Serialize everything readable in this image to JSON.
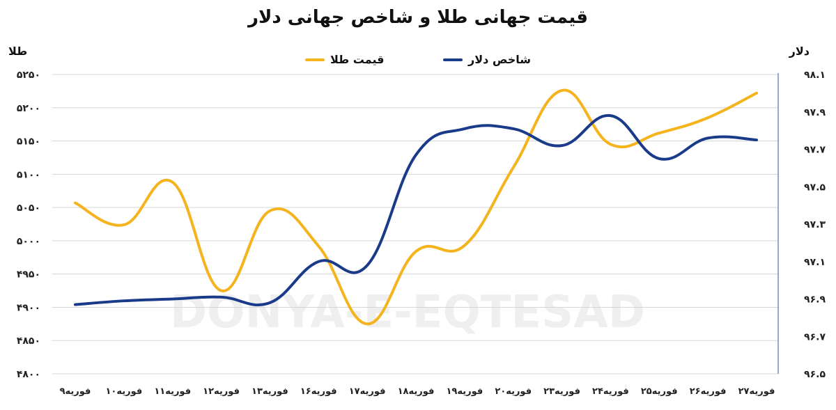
{
  "chart_data": {
    "type": "line",
    "title": "قیمت جهانی طلا و شاخص جهانی دلار",
    "ylabel_left": "طلا",
    "ylabel_right": "دلار",
    "watermark": "DONYA-E-EQTESAD",
    "categories": [
      "۹فوریه",
      "۱۰فوریه",
      "۱۱فوریه",
      "۱۲فوریه",
      "۱۳فوریه",
      "۱۶فوریه",
      "۱۷فوریه",
      "۱۸فوریه",
      "۱۹فوریه",
      "۲۰فوریه",
      "۲۳فوریه",
      "۲۴فوریه",
      "۲۵فوریه",
      "۲۶فوریه",
      "۲۷فوریه"
    ],
    "left_axis": {
      "ylim": [
        4800,
        5250
      ],
      "ticks": [
        4800,
        4850,
        4900,
        4950,
        5000,
        5050,
        5100,
        5150,
        5200,
        5250
      ],
      "tick_labels": [
        "۴۸۰۰",
        "۴۸۵۰",
        "۴۹۰۰",
        "۴۹۵۰",
        "۵۰۰۰",
        "۵۰۵۰",
        "۵۱۰۰",
        "۵۱۵۰",
        "۵۲۰۰",
        "۵۲۵۰"
      ]
    },
    "right_axis": {
      "ylim": [
        96.5,
        98.1
      ],
      "ticks": [
        96.5,
        96.7,
        96.9,
        97.1,
        97.3,
        97.5,
        97.7,
        97.9,
        98.1
      ],
      "tick_labels": [
        "۹۶.۵",
        "۹۶.۷",
        "۹۶.۹",
        "۹۷.۱",
        "۹۷.۳",
        "۹۷.۵",
        "۹۷.۷",
        "۹۷.۹",
        "۹۸.۱"
      ]
    },
    "grid": true,
    "legend_position": "top",
    "series": [
      {
        "name": "قیمت طلا",
        "axis": "left",
        "color": "#F5B41E",
        "values": [
          5057,
          5024,
          5088,
          4925,
          5045,
          4992,
          4875,
          4984,
          4993,
          5110,
          5226,
          5145,
          5162,
          5185,
          5222
        ]
      },
      {
        "name": "شاخص دلار",
        "axis": "right",
        "color": "#1A3A8A",
        "values": [
          96.87,
          96.89,
          96.9,
          96.91,
          96.88,
          97.1,
          97.08,
          97.67,
          97.81,
          97.81,
          97.72,
          97.88,
          97.65,
          97.76,
          97.75
        ]
      }
    ]
  }
}
